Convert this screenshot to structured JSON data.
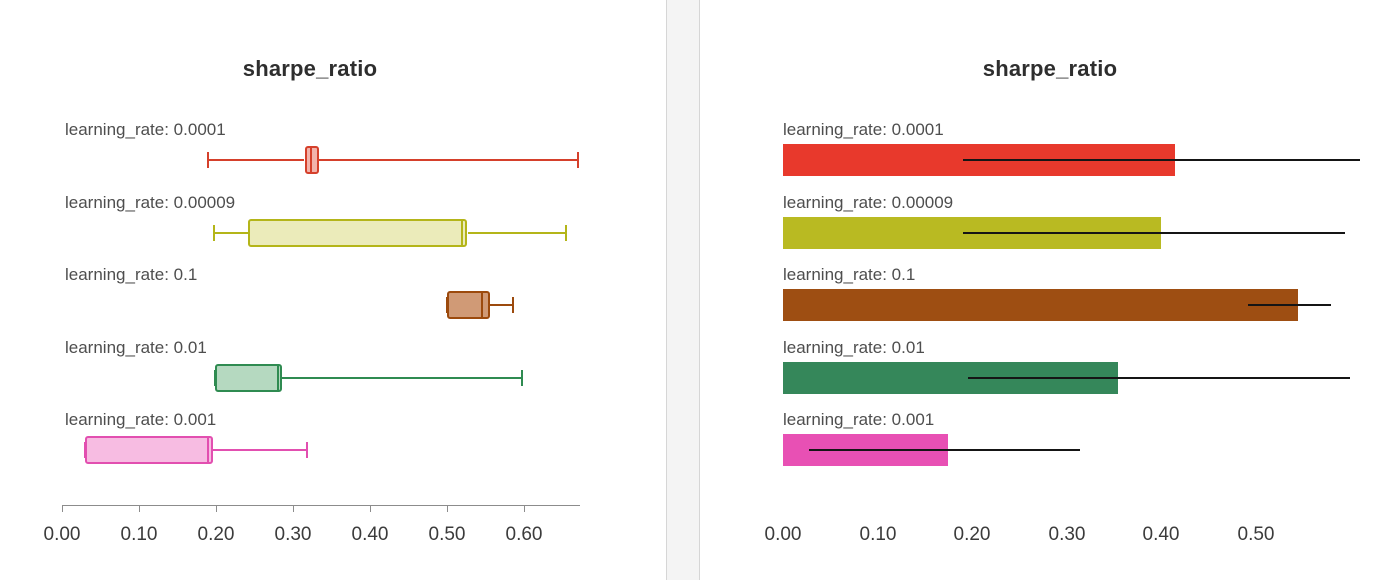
{
  "chart_data": [
    {
      "type": "boxplot",
      "orientation": "horizontal",
      "title": "sharpe_ratio",
      "xlabel": "",
      "xlim": [
        0.0,
        0.672
      ],
      "grid": false,
      "xticks": [
        0.0,
        0.1,
        0.2,
        0.3,
        0.4,
        0.5,
        0.6
      ],
      "xtick_labels": [
        "0.00",
        "0.10",
        "0.20",
        "0.30",
        "0.40",
        "0.50",
        "0.60"
      ],
      "rows": [
        {
          "label": "learning_rate: 0.0001",
          "color": "#d5402b",
          "fill": "#f2b3ab",
          "whisker_low": 0.19,
          "q1": 0.315,
          "median": 0.323,
          "q3": 0.333,
          "whisker_high": 0.67
        },
        {
          "label": "learning_rate: 0.00009",
          "color": "#b4b519",
          "fill": "#ebebba",
          "whisker_low": 0.198,
          "q1": 0.242,
          "median": 0.52,
          "q3": 0.527,
          "whisker_high": 0.655
        },
        {
          "label": "learning_rate: 0.1",
          "color": "#9c4a0d",
          "fill": "#d09a76",
          "whisker_low": 0.5,
          "q1": 0.5,
          "median": 0.545,
          "q3": 0.556,
          "whisker_high": 0.586
        },
        {
          "label": "learning_rate: 0.01",
          "color": "#2f8b51",
          "fill": "#b5d9c0",
          "whisker_low": 0.199,
          "q1": 0.199,
          "median": 0.28,
          "q3": 0.286,
          "whisker_high": 0.598
        },
        {
          "label": "learning_rate: 0.001",
          "color": "#e24fb0",
          "fill": "#f7bce2",
          "whisker_low": 0.03,
          "q1": 0.03,
          "median": 0.19,
          "q3": 0.196,
          "whisker_high": 0.318
        }
      ]
    },
    {
      "type": "bar",
      "orientation": "horizontal",
      "title": "sharpe_ratio",
      "xlabel": "",
      "xlim": [
        0.0,
        0.626
      ],
      "grid": false,
      "xticks": [
        0.0,
        0.1,
        0.2,
        0.3,
        0.4,
        0.5
      ],
      "xtick_labels": [
        "0.00",
        "0.10",
        "0.20",
        "0.30",
        "0.40",
        "0.50"
      ],
      "error_bar_color": "#151515",
      "rows": [
        {
          "label": "learning_rate: 0.0001",
          "color": "#e8392c",
          "value": 0.415,
          "err_low": 0.19,
          "err_high": 0.61
        },
        {
          "label": "learning_rate: 0.00009",
          "color": "#b9ba22",
          "value": 0.4,
          "err_low": 0.19,
          "err_high": 0.594
        },
        {
          "label": "learning_rate: 0.1",
          "color": "#9e4e12",
          "value": 0.545,
          "err_low": 0.492,
          "err_high": 0.58
        },
        {
          "label": "learning_rate: 0.01",
          "color": "#35875a",
          "value": 0.355,
          "err_low": 0.196,
          "err_high": 0.6
        },
        {
          "label": "learning_rate: 0.001",
          "color": "#e850b4",
          "value": 0.175,
          "err_low": 0.028,
          "err_high": 0.315
        }
      ]
    }
  ]
}
